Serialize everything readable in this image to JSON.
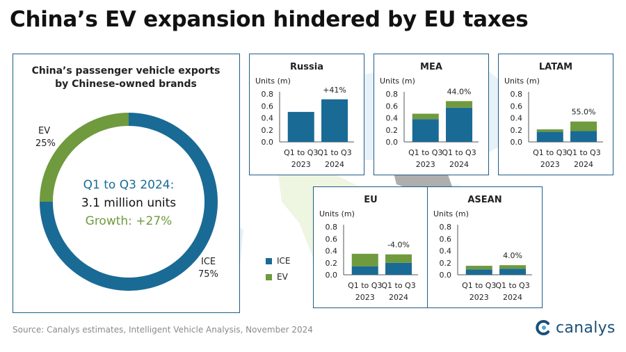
{
  "title": "China’s EV expansion hindered by EU taxes",
  "colors": {
    "ice": "#1a6a96",
    "ev": "#6f9a3e",
    "border": "#1d5b86",
    "map_land": "#b8d9e8",
    "map_green": "#cfe3a8",
    "map_grey": "#9a9a9a",
    "growth_text": "#6f9a3e"
  },
  "legend": {
    "ice_label": "ICE",
    "ev_label": "EV"
  },
  "source": "Source: Canalys estimates, Intelligent Vehicle Analysis, November 2024",
  "brand": "canalys",
  "chart_data": [
    {
      "type": "pie",
      "variant": "donut",
      "title_line1": "China’s passenger vehicle exports",
      "title_line2": "by Chinese-owned brands",
      "slices": [
        {
          "name": "ICE",
          "share": 75,
          "label_name": "ICE",
          "label_value": "75%"
        },
        {
          "name": "EV",
          "share": 25,
          "label_name": "EV",
          "label_value": "25%"
        }
      ],
      "center_line1": "Q1 to Q3 2024:",
      "center_line2": "3.1 million units",
      "center_line3": "Growth: +27%"
    },
    {
      "type": "bar",
      "stacked": true,
      "region": "Russia",
      "ylabel": "Units (m)",
      "ylim": [
        0,
        0.8
      ],
      "yticks": [
        "0.8",
        "0.6",
        "0.4",
        "0.2",
        "0.0"
      ],
      "categories": [
        [
          "Q1 to Q3",
          "2023"
        ],
        [
          "Q1 to Q3",
          "2024"
        ]
      ],
      "series": [
        {
          "name": "ICE",
          "values": [
            0.5,
            0.71
          ]
        },
        {
          "name": "EV",
          "values": [
            0.0,
            0.0
          ]
        }
      ],
      "growth_label": "+41%"
    },
    {
      "type": "bar",
      "stacked": true,
      "region": "MEA",
      "ylabel": "Units (m)",
      "ylim": [
        0,
        0.8
      ],
      "yticks": [
        "0.8",
        "0.6",
        "0.4",
        "0.2",
        "0.0"
      ],
      "categories": [
        [
          "Q1 to Q3",
          "2023"
        ],
        [
          "Q1 to Q3",
          "2024"
        ]
      ],
      "series": [
        {
          "name": "ICE",
          "values": [
            0.38,
            0.57
          ]
        },
        {
          "name": "EV",
          "values": [
            0.09,
            0.11
          ]
        }
      ],
      "growth_label": "44.0%"
    },
    {
      "type": "bar",
      "stacked": true,
      "region": "LATAM",
      "ylabel": "Units (m)",
      "ylim": [
        0,
        0.8
      ],
      "yticks": [
        "0.8",
        "0.6",
        "0.4",
        "0.2",
        "0.0"
      ],
      "categories": [
        [
          "Q1 to Q3",
          "2023"
        ],
        [
          "Q1 to Q3",
          "2024"
        ]
      ],
      "series": [
        {
          "name": "ICE",
          "values": [
            0.17,
            0.18
          ]
        },
        {
          "name": "EV",
          "values": [
            0.04,
            0.16
          ]
        }
      ],
      "growth_label": "55.0%"
    },
    {
      "type": "bar",
      "stacked": true,
      "region": "EU",
      "ylabel": "Units (m)",
      "ylim": [
        0,
        0.8
      ],
      "yticks": [
        "0.8",
        "0.6",
        "0.4",
        "0.2",
        "0.0"
      ],
      "categories": [
        [
          "Q1 to Q3",
          "2023"
        ],
        [
          "Q1 to Q3",
          "2024"
        ]
      ],
      "series": [
        {
          "name": "ICE",
          "values": [
            0.14,
            0.2
          ]
        },
        {
          "name": "EV",
          "values": [
            0.21,
            0.14
          ]
        }
      ],
      "growth_label": "-4.0%"
    },
    {
      "type": "bar",
      "stacked": true,
      "region": "ASEAN",
      "ylabel": "Units (m)",
      "ylim": [
        0,
        0.8
      ],
      "yticks": [
        "0.8",
        "0.6",
        "0.4",
        "0.2",
        "0.0"
      ],
      "categories": [
        [
          "Q1 to Q3",
          "2023"
        ],
        [
          "Q1 to Q3",
          "2024"
        ]
      ],
      "series": [
        {
          "name": "ICE",
          "values": [
            0.09,
            0.1
          ]
        },
        {
          "name": "EV",
          "values": [
            0.06,
            0.06
          ]
        }
      ],
      "growth_label": "4.0%"
    }
  ]
}
